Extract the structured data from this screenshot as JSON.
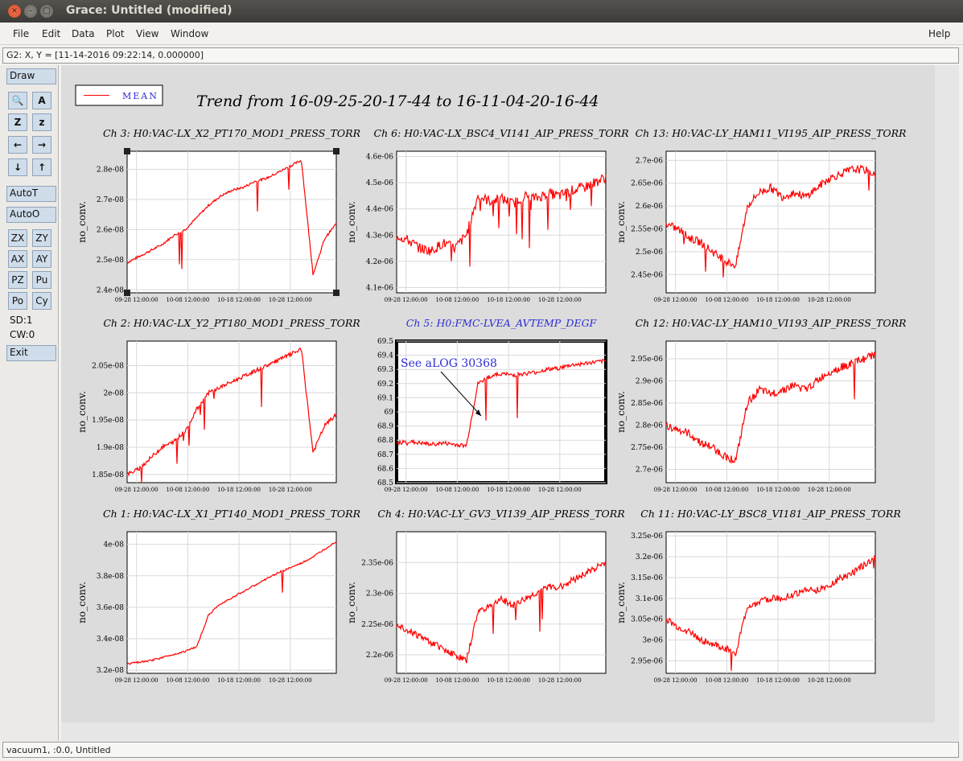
{
  "window": {
    "title": "Grace: Untitled (modified)",
    "close_glyph": "×",
    "minimize_glyph": "–",
    "maximize_glyph": "▢"
  },
  "menu": {
    "file": "File",
    "edit": "Edit",
    "data": "Data",
    "plot": "Plot",
    "view": "View",
    "window": "Window",
    "help": "Help"
  },
  "locator": "G2: X, Y = [11-14-2016 09:22:14, 0.000000]",
  "toolbar": {
    "draw": "Draw",
    "icons": [
      "zoom-icon",
      "text-icon",
      "autoscale-z-icon",
      "zoom-z-icon",
      "arrow-left-icon",
      "arrow-right-icon",
      "arrow-down-icon",
      "arrow-up-icon"
    ],
    "glyphs": {
      "zoom": "🔍",
      "text": "A",
      "autoz": "Z",
      "zz": "z",
      "left": "←",
      "right": "→",
      "down": "↓",
      "up": "↑"
    },
    "autot": "AutoT",
    "autoo": "AutoO",
    "zx": "ZX",
    "zy": "ZY",
    "ax": "AX",
    "ay": "AY",
    "pz": "PZ",
    "pu": "Pu",
    "po": "Po",
    "cy": "Cy",
    "sd": "SD:1",
    "cw": "CW:0",
    "exit": "Exit"
  },
  "canvas": {
    "legend": "MEAN",
    "title": "Trend from 16-09-25-20-17-44 to 16-11-04-20-16-44",
    "annotation": "See aLOG 30368",
    "line_color": "#ff0000",
    "accent_title_color": "#2b2bd6"
  },
  "status": "vacuum1, :0.0, Untitled",
  "chart_data": [
    {
      "type": "line",
      "title": "Ch 3: H0:VAC-LX_X2_PT170_MOD1_PRESS_TORR",
      "ylabel": "no_conv.",
      "x_ticks": [
        "09-28 12:00:00",
        "10-08 12:00:00",
        "10-18 12:00:00",
        "10-28 12:00:00"
      ],
      "ylim": [
        2.39e-08,
        2.86e-08
      ],
      "y_ticks": [
        2.4e-08,
        2.5e-08,
        2.6e-08,
        2.7e-08,
        2.8e-08
      ],
      "y_tick_labels": [
        "2.4e-08",
        "2.5e-08",
        "2.6e-08",
        "2.7e-08",
        "2.8e-08"
      ],
      "values": [
        2.49e-08,
        2.51e-08,
        2.53e-08,
        2.55e-08,
        2.58e-08,
        2.6e-08,
        2.64e-08,
        2.68e-08,
        2.71e-08,
        2.73e-08,
        2.74e-08,
        2.76e-08,
        2.77e-08,
        2.79e-08,
        2.81e-08,
        2.83e-08,
        2.45e-08,
        2.57e-08,
        2.62e-08
      ],
      "noise": 0.2,
      "spikes": 0.3
    },
    {
      "type": "line",
      "title": "Ch 6: H0:VAC-LX_BSC4_VI141_AIP_PRESS_TORR",
      "ylabel": "no_conv.",
      "x_ticks": [
        "09-28 12:00:00",
        "10-08 12:00:00",
        "10-18 12:00:00",
        "10-28 12:00:00"
      ],
      "ylim": [
        4.08e-06,
        4.62e-06
      ],
      "y_ticks": [
        4.1e-06,
        4.2e-06,
        4.3e-06,
        4.4e-06,
        4.5e-06,
        4.6e-06
      ],
      "y_tick_labels": [
        "4.1e-06",
        "4.2e-06",
        "4.3e-06",
        "4.4e-06",
        "4.5e-06",
        "4.6e-06"
      ],
      "values": [
        4.3e-06,
        4.28e-06,
        4.25e-06,
        4.24e-06,
        4.27e-06,
        4.25e-06,
        4.3e-06,
        4.45e-06,
        4.43e-06,
        4.44e-06,
        4.42e-06,
        4.45e-06,
        4.44e-06,
        4.46e-06,
        4.45e-06,
        4.47e-06,
        4.48e-06,
        4.5e-06,
        4.52e-06
      ],
      "noise": 0.9,
      "spikes": 0.8
    },
    {
      "type": "line",
      "title": "Ch 13: H0:VAC-LY_HAM11_VI195_AIP_PRESS_TORR",
      "ylabel": "no_conv.",
      "x_ticks": [
        "09-28 12:00:00",
        "10-08 12:00:00",
        "10-18 12:00:00",
        "10-28 12:00:00"
      ],
      "ylim": [
        2.41e-06,
        2.72e-06
      ],
      "y_ticks": [
        2.45e-06,
        2.5e-06,
        2.55e-06,
        2.6e-06,
        2.65e-06,
        2.7e-06
      ],
      "y_tick_labels": [
        "2.45e-06",
        "2.5e-06",
        "2.55e-06",
        "2.6e-06",
        "2.65e-06",
        "2.7e-06"
      ],
      "values": [
        2.56e-06,
        2.55e-06,
        2.53e-06,
        2.52e-06,
        2.5e-06,
        2.48e-06,
        2.47e-06,
        2.6e-06,
        2.63e-06,
        2.64e-06,
        2.62e-06,
        2.63e-06,
        2.62e-06,
        2.64e-06,
        2.66e-06,
        2.67e-06,
        2.68e-06,
        2.68e-06,
        2.67e-06
      ],
      "noise": 0.7,
      "spikes": 0.5
    },
    {
      "type": "line",
      "title": "Ch 2: H0:VAC-LX_Y2_PT180_MOD1_PRESS_TORR",
      "ylabel": "no_conv.",
      "x_ticks": [
        "09-28 12:00:00",
        "10-08 12:00:00",
        "10-18 12:00:00",
        "10-28 12:00:00"
      ],
      "ylim": [
        1.835e-08,
        2.095e-08
      ],
      "y_ticks": [
        1.85e-08,
        1.9e-08,
        1.95e-08,
        2e-08,
        2.05e-08
      ],
      "y_tick_labels": [
        "1.85e-08",
        "1.9e-08",
        "1.95e-08",
        "2e-08",
        "2.05e-08"
      ],
      "values": [
        1.85e-08,
        1.86e-08,
        1.88e-08,
        1.9e-08,
        1.91e-08,
        1.93e-08,
        1.97e-08,
        2e-08,
        2.01e-08,
        2.02e-08,
        2.03e-08,
        2.04e-08,
        2.05e-08,
        2.06e-08,
        2.07e-08,
        2.08e-08,
        1.89e-08,
        1.94e-08,
        1.96e-08
      ],
      "noise": 0.35,
      "spikes": 0.3
    },
    {
      "type": "line",
      "title": "Ch 5: H0:FMC-LVEA_AVTEMP_DEGF",
      "ylabel": "",
      "x_ticks": [
        "09-28 12:00:00",
        "10-08 12:00:00",
        "10-18 12:00:00",
        "10-28 12:00:00"
      ],
      "ylim": [
        68.5,
        69.5
      ],
      "y_ticks": [
        68.5,
        68.6,
        68.7,
        68.8,
        68.9,
        69,
        69.1,
        69.2,
        69.3,
        69.4,
        69.5
      ],
      "y_tick_labels": [
        "68.5",
        "68.6",
        "68.7",
        "68.8",
        "68.9",
        "69",
        "69.1",
        "69.2",
        "69.3",
        "69.4",
        "69.5"
      ],
      "values": [
        68.78,
        68.79,
        68.78,
        68.77,
        68.78,
        68.77,
        68.76,
        69.2,
        69.25,
        69.27,
        69.26,
        69.27,
        69.28,
        69.3,
        69.31,
        69.33,
        69.34,
        69.35,
        69.36
      ],
      "noise": 0.35,
      "spikes": 0.6
    },
    {
      "type": "line",
      "title": "Ch 12: H0:VAC-LY_HAM10_VI193_AIP_PRESS_TORR",
      "ylabel": "no_conv.",
      "x_ticks": [
        "09-28 12:00:00",
        "10-08 12:00:00",
        "10-18 12:00:00",
        "10-28 12:00:00"
      ],
      "ylim": [
        2.67e-06,
        2.99e-06
      ],
      "y_ticks": [
        2.7e-06,
        2.75e-06,
        2.8e-06,
        2.85e-06,
        2.9e-06,
        2.95e-06
      ],
      "y_tick_labels": [
        "2.7e-06",
        "2.75e-06",
        "2.8e-06",
        "2.85e-06",
        "2.9e-06",
        "2.95e-06"
      ],
      "values": [
        2.8e-06,
        2.79e-06,
        2.78e-06,
        2.76e-06,
        2.75e-06,
        2.73e-06,
        2.72e-06,
        2.85e-06,
        2.88e-06,
        2.87e-06,
        2.88e-06,
        2.89e-06,
        2.88e-06,
        2.9e-06,
        2.92e-06,
        2.93e-06,
        2.94e-06,
        2.95e-06,
        2.96e-06
      ],
      "noise": 0.7,
      "spikes": 0.5
    },
    {
      "type": "line",
      "title": "Ch 1: H0:VAC-LX_X1_PT140_MOD1_PRESS_TORR",
      "ylabel": "no_conv.",
      "x_ticks": [
        "09-28 12:00:00",
        "10-08 12:00:00",
        "10-18 12:00:00",
        "10-28 12:00:00"
      ],
      "ylim": [
        3.18e-08,
        4.08e-08
      ],
      "y_ticks": [
        3.2e-08,
        3.4e-08,
        3.6e-08,
        3.8e-08,
        4e-08
      ],
      "y_tick_labels": [
        "3.2e-08",
        "3.4e-08",
        "3.6e-08",
        "3.8e-08",
        "4e-08"
      ],
      "values": [
        3.24e-08,
        3.25e-08,
        3.26e-08,
        3.28e-08,
        3.3e-08,
        3.32e-08,
        3.35e-08,
        3.55e-08,
        3.62e-08,
        3.66e-08,
        3.7e-08,
        3.74e-08,
        3.78e-08,
        3.82e-08,
        3.85e-08,
        3.88e-08,
        3.92e-08,
        3.97e-08,
        4.02e-08
      ],
      "noise": 0.15,
      "spikes": 0.2
    },
    {
      "type": "line",
      "title": "Ch 4: H0:VAC-LY_GV3_VI139_AIP_PRESS_TORR",
      "ylabel": "no_conv.",
      "x_ticks": [
        "09-28 12:00:00",
        "10-08 12:00:00",
        "10-18 12:00:00",
        "10-28 12:00:00"
      ],
      "ylim": [
        2.17e-06,
        2.4e-06
      ],
      "y_ticks": [
        2.2e-06,
        2.25e-06,
        2.3e-06,
        2.35e-06
      ],
      "y_tick_labels": [
        "2.2e-06",
        "2.25e-06",
        "2.3e-06",
        "2.35e-06"
      ],
      "values": [
        2.25e-06,
        2.24e-06,
        2.23e-06,
        2.22e-06,
        2.21e-06,
        2.2e-06,
        2.19e-06,
        2.27e-06,
        2.28e-06,
        2.29e-06,
        2.28e-06,
        2.29e-06,
        2.3e-06,
        2.31e-06,
        2.31e-06,
        2.32e-06,
        2.33e-06,
        2.34e-06,
        2.35e-06
      ],
      "noise": 0.6,
      "spikes": 0.5
    },
    {
      "type": "line",
      "title": "Ch 11: H0:VAC-LY_BSC8_VI181_AIP_PRESS_TORR",
      "ylabel": "no_conv.",
      "x_ticks": [
        "09-28 12:00:00",
        "10-08 12:00:00",
        "10-18 12:00:00",
        "10-28 12:00:00"
      ],
      "ylim": [
        2.92e-06,
        3.26e-06
      ],
      "y_ticks": [
        2.95e-06,
        3e-06,
        3.05e-06,
        3.1e-06,
        3.15e-06,
        3.2e-06,
        3.25e-06
      ],
      "y_tick_labels": [
        "2.95e-06",
        "3e-06",
        "3.05e-06",
        "3.1e-06",
        "3.15e-06",
        "3.2e-06",
        "3.25e-06"
      ],
      "values": [
        3.05e-06,
        3.03e-06,
        3.02e-06,
        3e-06,
        2.99e-06,
        2.98e-06,
        2.97e-06,
        3.08e-06,
        3.09e-06,
        3.1e-06,
        3.1e-06,
        3.11e-06,
        3.12e-06,
        3.12e-06,
        3.13e-06,
        3.15e-06,
        3.16e-06,
        3.18e-06,
        3.2e-06
      ],
      "noise": 0.6,
      "spikes": 0.5
    }
  ]
}
